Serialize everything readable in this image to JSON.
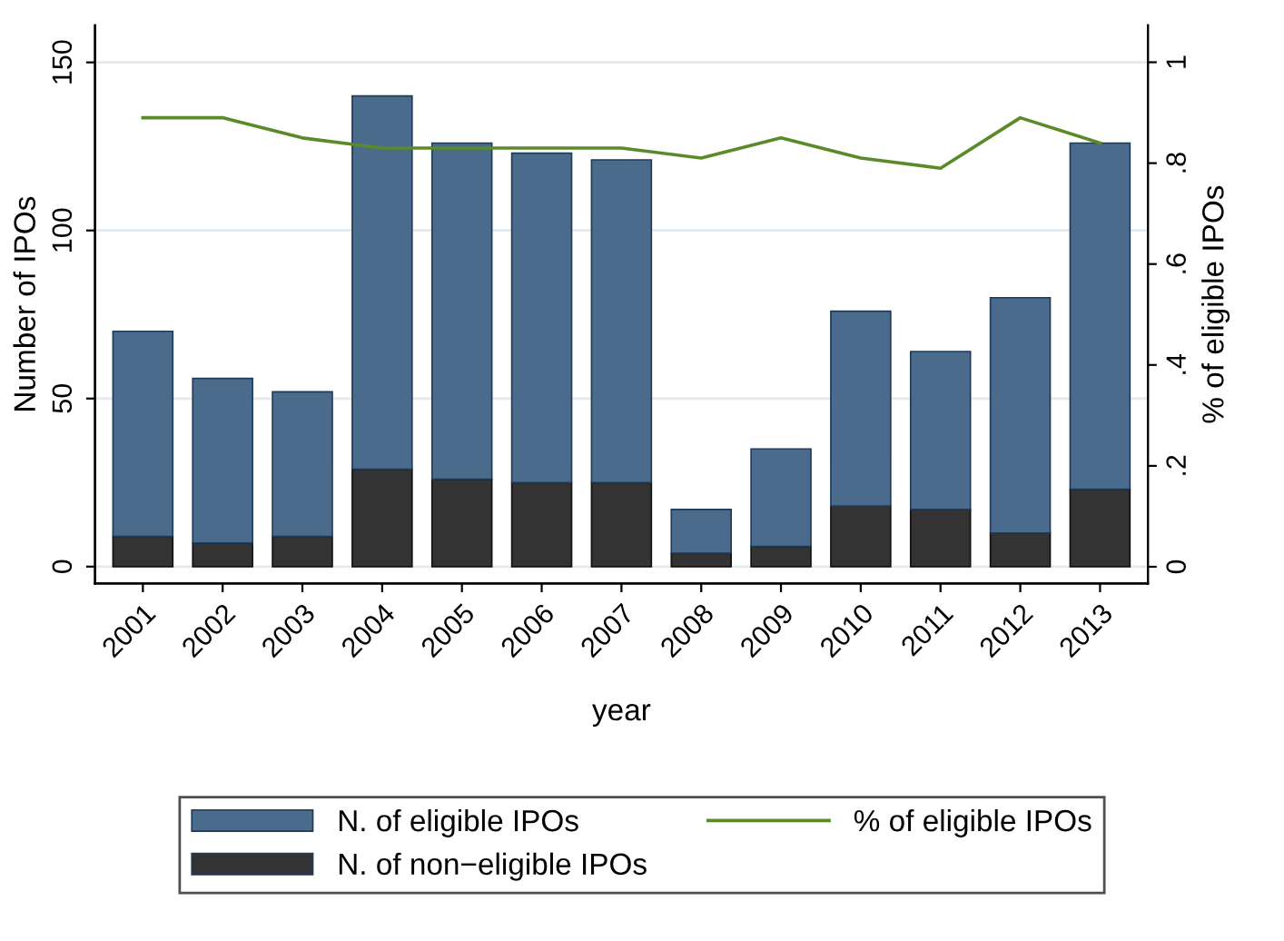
{
  "chart_data": {
    "type": "bar",
    "stacked": true,
    "xlabel": "year",
    "ylabel": "Number of IPOs",
    "y2label": "% of eligible IPOs",
    "categories": [
      "2001",
      "2002",
      "2003",
      "2004",
      "2005",
      "2006",
      "2007",
      "2008",
      "2009",
      "2010",
      "2011",
      "2012",
      "2013"
    ],
    "series": [
      {
        "name": "N. of non−eligible IPOs",
        "color": "#333333",
        "values": [
          9,
          7,
          9,
          29,
          26,
          25,
          25,
          4,
          6,
          18,
          17,
          10,
          23
        ]
      },
      {
        "name": "N. of eligible IPOs",
        "color": "#4a6b8b",
        "values": [
          61,
          49,
          43,
          111,
          100,
          98,
          96,
          13,
          29,
          58,
          47,
          70,
          103
        ]
      },
      {
        "name": "% of eligible IPOs",
        "type": "line",
        "axis": "y2",
        "color": "#5a8a2a",
        "values": [
          0.89,
          0.89,
          0.85,
          0.83,
          0.83,
          0.83,
          0.83,
          0.81,
          0.85,
          0.81,
          0.79,
          0.89,
          0.84
        ]
      }
    ],
    "ylim": [
      -5,
      161
    ],
    "yticks": [
      0,
      50,
      100,
      150
    ],
    "y2lim": [
      -0.033,
      1.073
    ],
    "y2ticks": [
      {
        "value": 0,
        "label": "0"
      },
      {
        "value": 0.2,
        "label": ".2"
      },
      {
        "value": 0.4,
        "label": ".4"
      },
      {
        "value": 0.6,
        "label": ".6"
      },
      {
        "value": 0.8,
        "label": ".8"
      },
      {
        "value": 1,
        "label": "1"
      }
    ],
    "grid": "y",
    "legend": "bottom",
    "marker": "none",
    "line_style": "solid"
  }
}
